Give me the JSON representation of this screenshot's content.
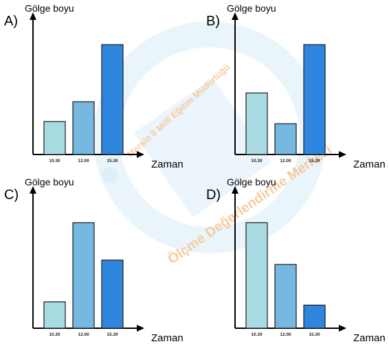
{
  "colors": {
    "bar_light": "#a9dbe3",
    "bar_mid": "#76b8e0",
    "bar_dark": "#2f86de",
    "axis": "#000000",
    "watermark_blue": "#cfe6f5",
    "watermark_orange": "#f6c38f"
  },
  "watermark": {
    "line1": "Mersin İl Millî Eğitim Müdürlüğü",
    "line2": "Ölçme Değerlendirme Merkezi"
  },
  "chart_data": [
    {
      "type": "bar",
      "option": "A)",
      "ylabel": "Gölge boyu",
      "xlabel": "Zaman",
      "categories": [
        "10.30",
        "12.00",
        "15.30"
      ],
      "values": [
        3,
        4.8,
        10
      ],
      "ylim": [
        0,
        12
      ],
      "grid": false
    },
    {
      "type": "bar",
      "option": "B)",
      "ylabel": "Gölge boyu",
      "xlabel": "Zaman",
      "categories": [
        "10.30",
        "12.00",
        "15.30"
      ],
      "values": [
        5.6,
        2.8,
        10
      ],
      "ylim": [
        0,
        12
      ],
      "grid": false
    },
    {
      "type": "bar",
      "option": "C)",
      "ylabel": "Gölge boyu",
      "xlabel": "Zaman",
      "categories": [
        "10.30",
        "12.00",
        "15.30"
      ],
      "values": [
        2.4,
        9.6,
        6.2
      ],
      "ylim": [
        0,
        12
      ],
      "grid": false
    },
    {
      "type": "bar",
      "option": "D)",
      "ylabel": "Gölge boyu",
      "xlabel": "Zaman",
      "categories": [
        "10.30",
        "12.00",
        "15.30"
      ],
      "values": [
        9.6,
        5.8,
        2.1
      ],
      "ylim": [
        0,
        12
      ],
      "grid": false
    }
  ]
}
